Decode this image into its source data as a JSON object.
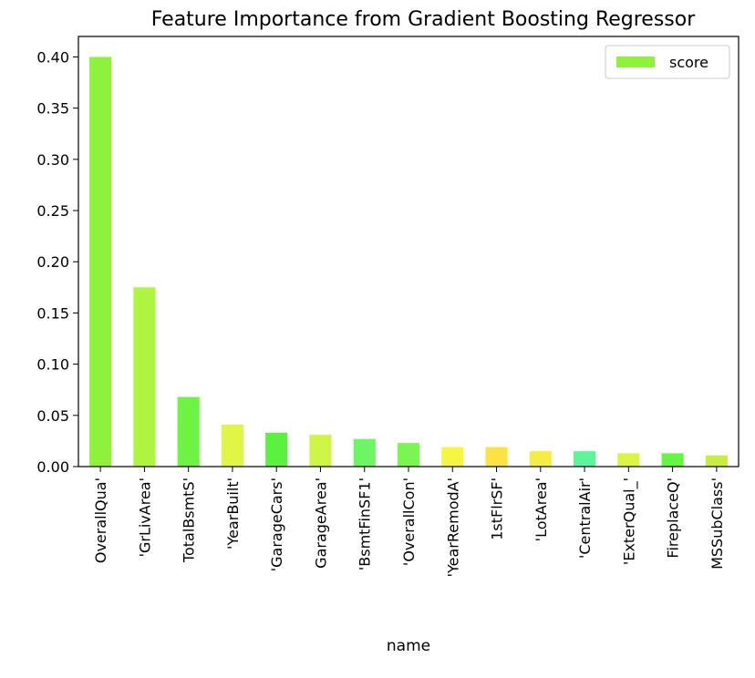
{
  "chart_data": {
    "type": "bar",
    "title": "Feature Importance from Gradient Boosting Regressor",
    "xlabel": "name",
    "ylabel": "",
    "ylim": [
      0,
      0.42
    ],
    "yticks": [
      "0.00",
      "0.05",
      "0.10",
      "0.15",
      "0.20",
      "0.25",
      "0.30",
      "0.35",
      "0.40"
    ],
    "legend": {
      "position": "top-right",
      "entries": [
        "score"
      ]
    },
    "grid": false,
    "categories": [
      "OverallQua'",
      "'GrLivArea'",
      "TotalBsmtS'",
      "'YearBuilt'",
      "'GarageCars'",
      "GarageArea'",
      "'BsmtFinSF1'",
      "'OverallCon'",
      "'YearRemodA'",
      "1stFlrSF'",
      "'LotArea'",
      "'CentralAir'",
      "'ExterQual_'",
      "FireplaceQ'",
      "MSSubClass'"
    ],
    "series": [
      {
        "name": "score",
        "values": [
          0.4,
          0.175,
          0.068,
          0.041,
          0.033,
          0.031,
          0.027,
          0.023,
          0.019,
          0.019,
          0.015,
          0.015,
          0.013,
          0.013,
          0.011
        ],
        "colors": [
          "#8ef23c",
          "#adf541",
          "#6ef243",
          "#e1f545",
          "#5af23e",
          "#cef545",
          "#6ef565",
          "#7bf552",
          "#f5f542",
          "#fae342",
          "#f5ed42",
          "#5cf59a",
          "#dcf542",
          "#65f542",
          "#c8ee44"
        ]
      }
    ]
  }
}
